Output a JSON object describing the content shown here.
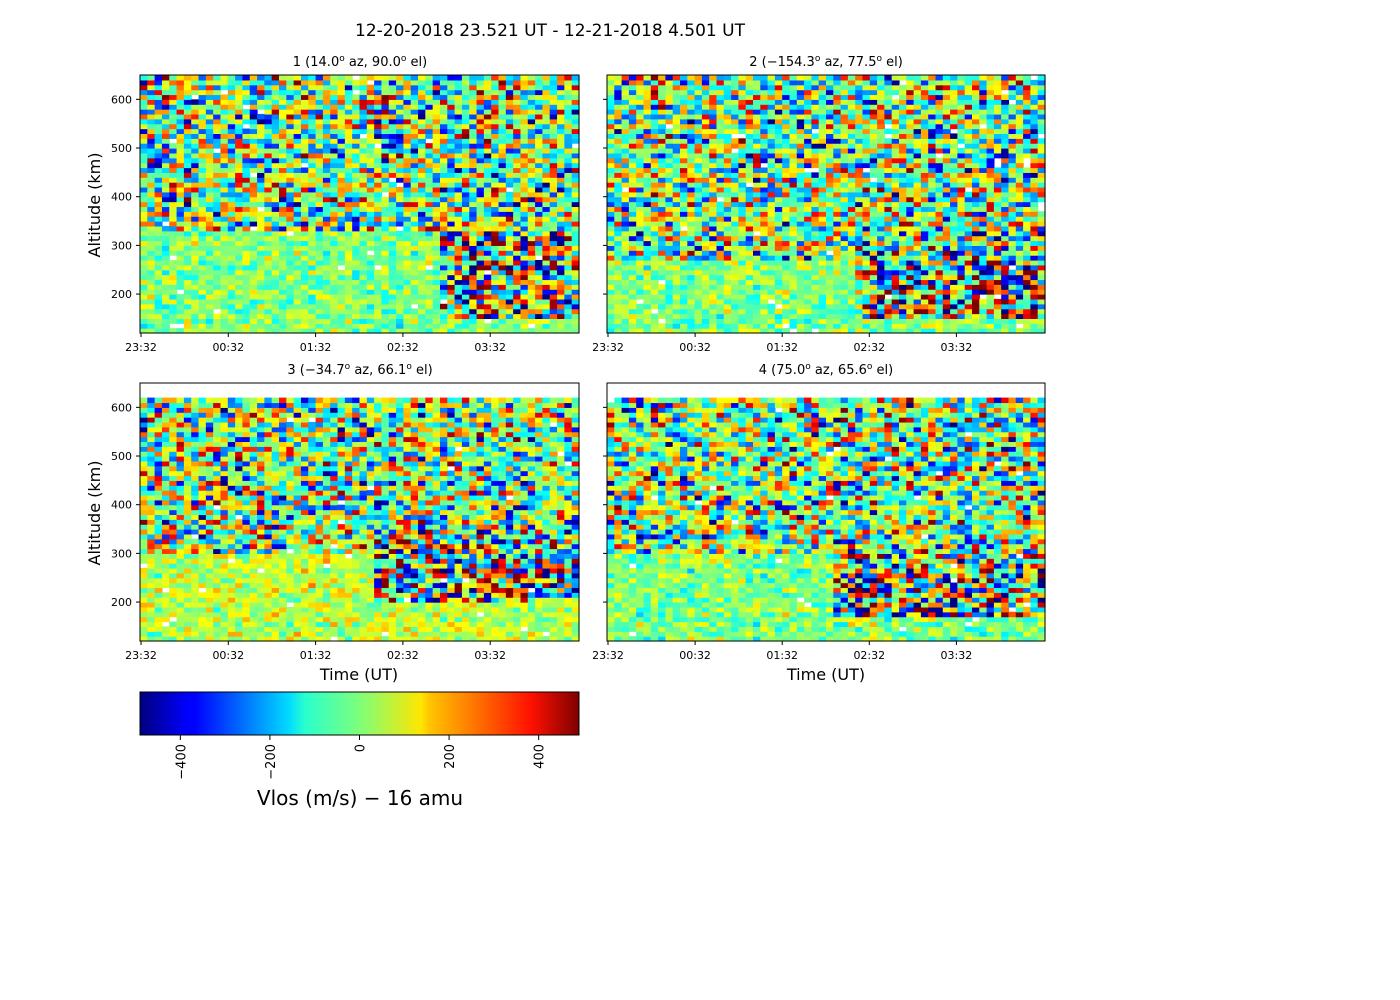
{
  "figure": {
    "title": "12-20-2018 23.521 UT - 12-21-2018 4.501 UT"
  },
  "chart_data": [
    {
      "type": "heatmap",
      "title": "1 (14.0° az, 90.0° el)",
      "title_parts": {
        "num": "1",
        "az": "14.0",
        "el": "90.0",
        "sign": ""
      },
      "xlabel": "",
      "ylabel": "Altitude (km)",
      "x_tick_labels": [
        "23:32",
        "00:32",
        "01:32",
        "02:32",
        "03:32"
      ],
      "y_ticks": [
        200,
        300,
        400,
        500,
        600
      ],
      "ylim": [
        120,
        650
      ],
      "data_top_km": 650,
      "value_range": [
        -490,
        490
      ],
      "pattern": "quiet below ~330 km; larger |Vlos| above; strong values at low altitude after ~02:30"
    },
    {
      "type": "heatmap",
      "title": "2 (−154.3° az, 77.5° el)",
      "title_parts": {
        "num": "2",
        "az": "154.3",
        "el": "77.5",
        "sign": "−"
      },
      "xlabel": "",
      "ylabel": "",
      "x_tick_labels": [
        "23:32",
        "00:32",
        "01:32",
        "02:32",
        "03:32"
      ],
      "y_ticks": [
        200,
        300,
        400,
        500,
        600
      ],
      "ylim": [
        120,
        650
      ],
      "data_top_km": 650,
      "value_range": [
        -490,
        490
      ],
      "pattern": "quiet below ~270 km early; strong values at 200–300 km after ~02:00"
    },
    {
      "type": "heatmap",
      "title": "3 (−34.7° az, 66.1° el)",
      "title_parts": {
        "num": "3",
        "az": "34.7",
        "el": "66.1",
        "sign": "−"
      },
      "xlabel": "Time (UT)",
      "ylabel": "Altitude (km)",
      "x_tick_labels": [
        "23:32",
        "00:32",
        "01:32",
        "02:32",
        "03:32"
      ],
      "y_ticks": [
        200,
        300,
        400,
        500,
        600
      ],
      "ylim": [
        120,
        650
      ],
      "data_top_km": 620,
      "value_range": [
        -490,
        490
      ],
      "pattern": "positive bias below ~300 km; strong values at 250–350 km after ~02:00"
    },
    {
      "type": "heatmap",
      "title": "4 (75.0° az, 65.6° el)",
      "title_parts": {
        "num": "4",
        "az": "75.0",
        "el": "65.6",
        "sign": ""
      },
      "xlabel": "Time (UT)",
      "ylabel": "",
      "x_tick_labels": [
        "23:32",
        "00:32",
        "01:32",
        "02:32",
        "03:32"
      ],
      "y_ticks": [
        200,
        300,
        400,
        500,
        600
      ],
      "ylim": [
        120,
        650
      ],
      "data_top_km": 620,
      "value_range": [
        -490,
        490
      ],
      "pattern": "quiet below ~300 km early; strong values at 200–300 km after ~02:00"
    }
  ],
  "colorbar": {
    "colormap": "jet",
    "range": [
      -490,
      490
    ],
    "ticks": [
      -400,
      -200,
      0,
      200,
      400
    ],
    "tick_labels": [
      "−400",
      "−200",
      "0",
      "200",
      "400"
    ],
    "label": "Vlos (m/s)  − 16 amu"
  }
}
